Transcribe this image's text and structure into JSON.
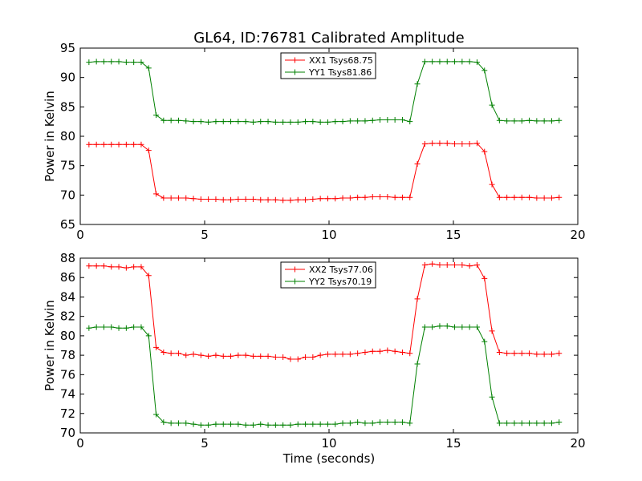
{
  "figure": {
    "title": "GL64, ID:76781 Calibrated Amplitude"
  },
  "chart_data": [
    {
      "type": "line",
      "title": "GL64, ID:76781 Calibrated Amplitude",
      "xlabel": "",
      "ylabel": "Power in Kelvin",
      "xlim": [
        0,
        20
      ],
      "ylim": [
        65,
        95
      ],
      "xticks": [
        0,
        5,
        10,
        15,
        20
      ],
      "yticks": [
        65,
        70,
        75,
        80,
        85,
        90,
        95
      ],
      "grid": false,
      "legend_position": "top-center",
      "x": [
        0.35,
        0.65,
        0.95,
        1.25,
        1.55,
        1.85,
        2.15,
        2.45,
        2.75,
        3.05,
        3.35,
        3.65,
        3.95,
        4.25,
        4.55,
        4.85,
        5.15,
        5.45,
        5.75,
        6.05,
        6.35,
        6.65,
        6.95,
        7.25,
        7.55,
        7.85,
        8.15,
        8.45,
        8.75,
        9.05,
        9.35,
        9.65,
        9.95,
        10.25,
        10.55,
        10.85,
        11.15,
        11.45,
        11.75,
        12.05,
        12.35,
        12.65,
        12.95,
        13.25,
        13.55,
        13.85,
        14.15,
        14.45,
        14.75,
        15.05,
        15.35,
        15.65,
        15.95,
        16.25,
        16.55,
        16.85,
        17.15,
        17.45,
        17.75,
        18.05,
        18.35,
        18.65,
        18.95,
        19.25
      ],
      "series": [
        {
          "name": "XX1 Tsys68.75",
          "color": "#ff0000",
          "values": [
            78.6,
            78.6,
            78.6,
            78.6,
            78.6,
            78.6,
            78.6,
            78.6,
            77.6,
            70.2,
            69.5,
            69.5,
            69.5,
            69.5,
            69.4,
            69.3,
            69.3,
            69.3,
            69.2,
            69.2,
            69.3,
            69.3,
            69.3,
            69.2,
            69.2,
            69.2,
            69.1,
            69.1,
            69.2,
            69.2,
            69.3,
            69.4,
            69.4,
            69.4,
            69.5,
            69.5,
            69.6,
            69.6,
            69.7,
            69.7,
            69.7,
            69.6,
            69.6,
            69.6,
            75.3,
            78.7,
            78.8,
            78.8,
            78.8,
            78.7,
            78.7,
            78.7,
            78.8,
            77.4,
            71.8,
            69.6,
            69.6,
            69.6,
            69.6,
            69.6,
            69.5,
            69.5,
            69.5,
            69.6
          ]
        },
        {
          "name": "YY1 Tsys81.86",
          "color": "#008000",
          "values": [
            92.6,
            92.7,
            92.7,
            92.7,
            92.7,
            92.6,
            92.6,
            92.6,
            91.6,
            83.6,
            82.7,
            82.7,
            82.7,
            82.6,
            82.5,
            82.5,
            82.4,
            82.5,
            82.5,
            82.5,
            82.5,
            82.5,
            82.4,
            82.5,
            82.5,
            82.4,
            82.4,
            82.4,
            82.4,
            82.5,
            82.5,
            82.4,
            82.4,
            82.5,
            82.5,
            82.6,
            82.6,
            82.6,
            82.7,
            82.8,
            82.8,
            82.8,
            82.8,
            82.5,
            88.9,
            92.7,
            92.7,
            92.7,
            92.7,
            92.7,
            92.7,
            92.7,
            92.6,
            91.2,
            85.3,
            82.7,
            82.6,
            82.6,
            82.6,
            82.7,
            82.6,
            82.6,
            82.6,
            82.7
          ]
        }
      ]
    },
    {
      "type": "line",
      "title": "",
      "xlabel": "Time (seconds)",
      "ylabel": "Power in Kelvin",
      "xlim": [
        0,
        20
      ],
      "ylim": [
        70,
        88
      ],
      "xticks": [
        0,
        5,
        10,
        15,
        20
      ],
      "yticks": [
        70,
        72,
        74,
        76,
        78,
        80,
        82,
        84,
        86,
        88
      ],
      "grid": false,
      "legend_position": "top-center",
      "x": [
        0.35,
        0.65,
        0.95,
        1.25,
        1.55,
        1.85,
        2.15,
        2.45,
        2.75,
        3.05,
        3.35,
        3.65,
        3.95,
        4.25,
        4.55,
        4.85,
        5.15,
        5.45,
        5.75,
        6.05,
        6.35,
        6.65,
        6.95,
        7.25,
        7.55,
        7.85,
        8.15,
        8.45,
        8.75,
        9.05,
        9.35,
        9.65,
        9.95,
        10.25,
        10.55,
        10.85,
        11.15,
        11.45,
        11.75,
        12.05,
        12.35,
        12.65,
        12.95,
        13.25,
        13.55,
        13.85,
        14.15,
        14.45,
        14.75,
        15.05,
        15.35,
        15.65,
        15.95,
        16.25,
        16.55,
        16.85,
        17.15,
        17.45,
        17.75,
        18.05,
        18.35,
        18.65,
        18.95,
        19.25
      ],
      "series": [
        {
          "name": "XX2 Tsys77.06",
          "color": "#ff0000",
          "values": [
            87.2,
            87.2,
            87.2,
            87.1,
            87.1,
            87.0,
            87.1,
            87.1,
            86.2,
            78.8,
            78.3,
            78.2,
            78.2,
            78.0,
            78.1,
            78.0,
            77.9,
            78.0,
            77.9,
            77.9,
            78.0,
            78.0,
            77.9,
            77.9,
            77.9,
            77.8,
            77.8,
            77.6,
            77.6,
            77.8,
            77.8,
            78.0,
            78.1,
            78.1,
            78.1,
            78.1,
            78.2,
            78.3,
            78.4,
            78.4,
            78.5,
            78.4,
            78.3,
            78.2,
            83.8,
            87.3,
            87.4,
            87.3,
            87.3,
            87.3,
            87.3,
            87.2,
            87.3,
            85.9,
            80.5,
            78.3,
            78.2,
            78.2,
            78.2,
            78.2,
            78.1,
            78.1,
            78.1,
            78.2
          ]
        },
        {
          "name": "YY2 Tsys70.19",
          "color": "#008000",
          "values": [
            80.8,
            80.9,
            80.9,
            80.9,
            80.8,
            80.8,
            80.9,
            80.9,
            80.0,
            71.9,
            71.1,
            71.0,
            71.0,
            71.0,
            70.9,
            70.8,
            70.8,
            70.9,
            70.9,
            70.9,
            70.9,
            70.8,
            70.8,
            70.9,
            70.8,
            70.8,
            70.8,
            70.8,
            70.9,
            70.9,
            70.9,
            70.9,
            70.9,
            70.9,
            71.0,
            71.0,
            71.1,
            71.0,
            71.0,
            71.1,
            71.1,
            71.1,
            71.1,
            71.0,
            77.1,
            80.9,
            80.9,
            81.0,
            81.0,
            80.9,
            80.9,
            80.9,
            80.9,
            79.4,
            73.7,
            71.0,
            71.0,
            71.0,
            71.0,
            71.0,
            71.0,
            71.0,
            71.0,
            71.1
          ]
        }
      ]
    }
  ]
}
